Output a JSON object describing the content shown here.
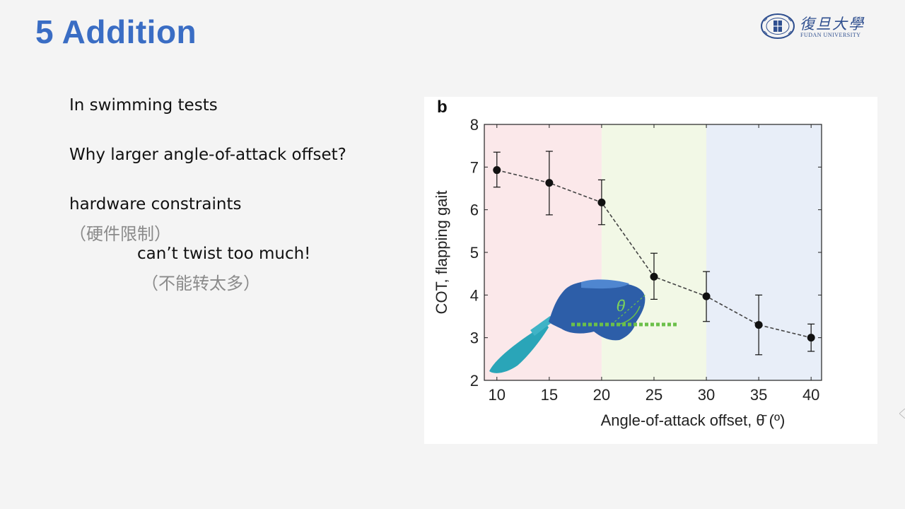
{
  "slide": {
    "title": "5 Addition",
    "lines": [
      "In swimming tests",
      "Why larger angle-of-attack offset?",
      "hardware constraints",
      "（硬件限制）",
      "can’t twist too much!",
      "（不能转太多）"
    ]
  },
  "logo": {
    "cn": "復旦大學",
    "en": "FUDAN UNIVERSITY",
    "icon": "fudan-emblem-icon"
  },
  "figure_icons": {
    "inset": "robot-fish-icon",
    "angle": "theta-angle-icon"
  },
  "chart_data": {
    "type": "scatter",
    "panel_label": "b",
    "xlabel": "Angle-of-attack offset, θ̄ (º)",
    "ylabel": "COT, flapping gait",
    "xlim": [
      8.8,
      41
    ],
    "ylim": [
      2,
      8
    ],
    "xticks": [
      10,
      15,
      20,
      25,
      30,
      35,
      40
    ],
    "yticks": [
      2,
      3,
      4,
      5,
      6,
      7,
      8
    ],
    "inset_label": "θ̄",
    "series": [
      {
        "x": [
          10,
          15,
          20,
          25,
          30,
          35,
          40
        ],
        "y": [
          6.93,
          6.63,
          6.17,
          4.43,
          3.97,
          3.3,
          3.0
        ],
        "err_low": [
          6.53,
          5.88,
          5.65,
          3.9,
          3.38,
          2.6,
          2.68
        ],
        "err_high": [
          7.35,
          7.37,
          6.7,
          4.98,
          4.55,
          4.0,
          3.32
        ],
        "line_style": "dashed",
        "color": "#111111"
      }
    ],
    "shaded_regions": [
      {
        "x0": 8.8,
        "x1": 20,
        "color": "#fbe8ea"
      },
      {
        "x0": 20,
        "x1": 30,
        "color": "#f2f8e6"
      },
      {
        "x0": 30,
        "x1": 41,
        "color": "#e8eef8"
      }
    ],
    "grid": false,
    "legend": "none"
  }
}
